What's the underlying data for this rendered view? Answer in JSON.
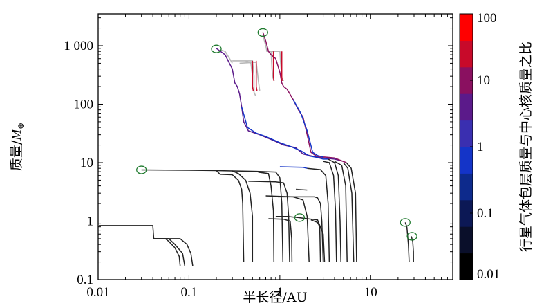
{
  "chart_data": {
    "type": "line",
    "xlabel": "半长径/AU",
    "ylabel": "质量/M⊕",
    "ylabel_text": "质量/",
    "ylabel_symbol": "M",
    "ylabel_sub": "⊕",
    "xscale": "log",
    "yscale": "log",
    "xlim": [
      0.01,
      80
    ],
    "ylim": [
      0.1,
      3500
    ],
    "x_tick_labels": [
      "0.01",
      "0.1",
      "1",
      "10"
    ],
    "x_ticks": [
      0.01,
      0.1,
      1,
      10
    ],
    "y_tick_labels": [
      "0.1",
      "1",
      "10",
      "100",
      "1 000"
    ],
    "y_ticks": [
      0.1,
      1,
      10,
      100,
      1000
    ],
    "grid": false,
    "colorbar": {
      "label": "行星气体包层质量与中心核质量之比",
      "scale": "log",
      "range": [
        0.01,
        100
      ],
      "tick_labels": [
        "0.01",
        "0.1",
        "1",
        "10",
        "100"
      ],
      "ticks": [
        0.01,
        0.1,
        1,
        10,
        100
      ],
      "colors": [
        "#000000",
        "#0a0f2a",
        "#0c1855",
        "#0d2a8c",
        "#1434c8",
        "#3a2fb0",
        "#5b1a8a",
        "#8a1060",
        "#c80a2a",
        "#ff0000"
      ]
    },
    "series": [
      {
        "color": "#222222",
        "points": [
          [
            0.0102,
            0.84
          ],
          [
            0.02,
            0.84
          ],
          [
            0.04,
            0.84
          ],
          [
            0.041,
            0.5
          ],
          [
            0.055,
            0.5
          ],
          [
            0.06,
            0.45
          ],
          [
            0.07,
            0.35
          ],
          [
            0.078,
            0.25
          ],
          [
            0.08,
            0.17
          ]
        ]
      },
      {
        "color": "#222222",
        "points": [
          [
            0.041,
            0.5
          ],
          [
            0.06,
            0.5
          ],
          [
            0.07,
            0.4
          ],
          [
            0.085,
            0.28
          ],
          [
            0.09,
            0.17
          ]
        ]
      },
      {
        "color": "#222222",
        "points": [
          [
            0.055,
            0.5
          ],
          [
            0.08,
            0.5
          ],
          [
            0.095,
            0.4
          ],
          [
            0.105,
            0.28
          ],
          [
            0.11,
            0.17
          ]
        ]
      },
      {
        "color": "#222222",
        "points": [
          [
            0.03,
            7.5
          ],
          [
            0.1,
            7.4
          ],
          [
            0.2,
            7.3
          ],
          [
            0.22,
            6.3
          ],
          [
            0.3,
            6.2
          ],
          [
            0.35,
            5
          ],
          [
            0.38,
            3.5
          ],
          [
            0.39,
            2
          ],
          [
            0.4,
            0.2
          ]
        ]
      },
      {
        "color": "#222222",
        "points": [
          [
            0.2,
            7.3
          ],
          [
            0.3,
            7.2
          ],
          [
            0.35,
            6.5
          ],
          [
            0.42,
            5
          ],
          [
            0.47,
            3
          ],
          [
            0.5,
            1.2
          ],
          [
            0.5,
            0.2
          ]
        ]
      },
      {
        "color": "#222222",
        "points": [
          [
            0.3,
            7.2
          ],
          [
            0.55,
            7.1
          ],
          [
            0.6,
            6.8
          ],
          [
            0.75,
            6.5
          ],
          [
            0.8,
            4
          ],
          [
            0.85,
            1.5
          ],
          [
            0.86,
            0.2
          ]
        ]
      },
      {
        "color": "#222222",
        "points": [
          [
            0.55,
            7.1
          ],
          [
            0.9,
            6.9
          ],
          [
            1.0,
            5.5
          ],
          [
            1.05,
            2
          ],
          [
            1.08,
            0.2
          ]
        ]
      },
      {
        "color": "#222222",
        "points": [
          [
            0.45,
            4.8
          ],
          [
            0.9,
            4.7
          ],
          [
            1.1,
            4.5
          ],
          [
            1.2,
            3
          ],
          [
            1.25,
            1.2
          ],
          [
            1.28,
            0.2
          ]
        ]
      },
      {
        "color": "#222222",
        "points": [
          [
            0.7,
            2.7
          ],
          [
            1.4,
            2.6
          ],
          [
            1.8,
            2.3
          ],
          [
            2.0,
            1.2
          ],
          [
            2.1,
            0.2
          ]
        ]
      },
      {
        "color": "#222222",
        "points": [
          [
            0.95,
            2.6
          ],
          [
            2.4,
            2.6
          ],
          [
            2.6,
            2.5
          ],
          [
            2.8,
            2
          ],
          [
            2.9,
            1
          ],
          [
            3.0,
            0.2
          ]
        ]
      },
      {
        "color": "#222222",
        "points": [
          [
            0.9,
            1.2
          ],
          [
            1.2,
            1.2
          ],
          [
            1.6,
            1.15
          ],
          [
            2.0,
            1.1
          ],
          [
            2.6,
            1.05
          ],
          [
            3.0,
            0.6
          ],
          [
            3.1,
            0.2
          ]
        ]
      },
      {
        "color": "#222222",
        "points": [
          [
            0.75,
            1.1
          ],
          [
            1.1,
            1.08
          ],
          [
            1.3,
            1.0
          ],
          [
            1.35,
            0.5
          ],
          [
            1.36,
            0.2
          ]
        ]
      },
      {
        "color": "#222222",
        "points": [
          [
            2.2,
            1.05
          ],
          [
            2.6,
            0.95
          ],
          [
            2.75,
            0.8
          ],
          [
            2.8,
            0.2
          ]
        ]
      },
      {
        "color": "#444444",
        "points": [
          [
            1.5,
            3.5
          ],
          [
            2.0,
            3.4
          ]
        ]
      },
      {
        "color": "#1434c8",
        "points": [
          [
            1.0,
            8.5
          ],
          [
            1.8,
            8.3
          ],
          [
            2.0,
            8.0
          ]
        ]
      },
      {
        "color": "#222222",
        "points": [
          [
            2.0,
            8.0
          ],
          [
            2.8,
            7.6
          ],
          [
            3.2,
            6
          ],
          [
            3.4,
            2
          ],
          [
            3.5,
            0.2
          ]
        ]
      },
      {
        "color": "#222222",
        "points": [
          [
            3.0,
            10.5
          ],
          [
            3.5,
            10
          ],
          [
            3.9,
            6
          ],
          [
            4.1,
            1.5
          ],
          [
            4.2,
            0.2
          ]
        ]
      },
      {
        "color": "#222222",
        "points": [
          [
            3.4,
            11.5
          ],
          [
            4.0,
            10
          ],
          [
            4.4,
            6
          ],
          [
            4.6,
            1
          ],
          [
            4.7,
            0.2
          ]
        ]
      },
      {
        "color": "#222222",
        "points": [
          [
            4.0,
            10.5
          ],
          [
            4.8,
            9
          ],
          [
            5.3,
            4
          ],
          [
            5.5,
            0.2
          ]
        ]
      },
      {
        "color": "#222222",
        "points": [
          [
            5.0,
            10
          ],
          [
            5.6,
            8
          ],
          [
            6.2,
            3
          ],
          [
            6.5,
            0.2
          ]
        ]
      },
      {
        "color": "#222222",
        "points": [
          [
            5.4,
            10
          ],
          [
            6.1,
            8
          ],
          [
            6.8,
            3
          ],
          [
            7.0,
            0.2
          ]
        ]
      },
      {
        "color": "#5b1a8a",
        "points": [
          [
            0.2,
            900
          ],
          [
            0.25,
            700
          ],
          [
            0.3,
            400
          ],
          [
            0.32,
            230
          ],
          [
            0.34,
            200
          ],
          [
            0.36,
            150
          ],
          [
            0.38,
            90
          ],
          [
            0.4,
            50
          ],
          [
            0.45,
            35
          ],
          [
            0.6,
            30
          ],
          [
            0.8,
            25
          ],
          [
            1.1,
            20
          ],
          [
            1.5,
            18
          ],
          [
            1.8,
            14
          ],
          [
            2.5,
            12.5
          ],
          [
            3.0,
            12
          ],
          [
            4.0,
            11.5
          ],
          [
            5.0,
            10.5
          ]
        ]
      },
      {
        "color": "#8a1060",
        "points": [
          [
            0.65,
            1700
          ],
          [
            0.7,
            1200
          ],
          [
            0.75,
            800
          ],
          [
            0.8,
            700
          ],
          [
            0.9,
            600
          ],
          [
            1.0,
            350
          ],
          [
            1.05,
            230
          ],
          [
            1.1,
            200
          ],
          [
            1.2,
            180
          ],
          [
            1.4,
            120
          ],
          [
            1.6,
            80
          ],
          [
            1.8,
            60
          ],
          [
            2.0,
            30
          ],
          [
            2.2,
            15
          ],
          [
            2.5,
            13
          ],
          [
            3.0,
            12.5
          ],
          [
            4.0,
            12
          ],
          [
            5.4,
            10
          ]
        ]
      },
      {
        "color": "#c80a2a",
        "points": [
          [
            0.5,
            550
          ],
          [
            0.5,
            200
          ],
          [
            0.51,
            170
          ]
        ]
      },
      {
        "color": "#c80a2a",
        "points": [
          [
            0.55,
            550
          ],
          [
            0.55,
            200
          ],
          [
            0.56,
            170
          ]
        ]
      },
      {
        "color": "#c80a2a",
        "points": [
          [
            0.85,
            800
          ],
          [
            0.85,
            300
          ],
          [
            0.86,
            250
          ]
        ]
      },
      {
        "color": "#c80a2a",
        "points": [
          [
            1.05,
            800
          ],
          [
            1.05,
            300
          ],
          [
            1.06,
            250
          ]
        ]
      },
      {
        "color": "#1434c8",
        "points": [
          [
            0.38,
            90
          ],
          [
            0.44,
            40
          ],
          [
            0.55,
            32
          ],
          [
            0.7,
            28
          ],
          [
            1.0,
            22
          ],
          [
            1.3,
            19
          ],
          [
            1.7,
            16
          ],
          [
            2.1,
            13
          ],
          [
            2.6,
            12.2
          ],
          [
            3.0,
            11.5
          ],
          [
            3.4,
            11.5
          ]
        ]
      },
      {
        "color": "#1434c8",
        "points": [
          [
            1.4,
            120
          ],
          [
            1.7,
            70
          ],
          [
            2.0,
            35
          ],
          [
            2.3,
            15
          ],
          [
            2.6,
            13.2
          ],
          [
            3.0,
            12.5
          ]
        ]
      },
      {
        "color": "#222222",
        "points": [
          [
            24,
            0.95
          ],
          [
            25,
            0.8
          ],
          [
            26,
            0.4
          ],
          [
            26.5,
            0.2
          ]
        ]
      },
      {
        "color": "#222222",
        "points": [
          [
            28,
            0.55
          ],
          [
            29,
            0.45
          ],
          [
            29.5,
            0.3
          ],
          [
            29.6,
            0.2
          ]
        ]
      }
    ],
    "gray_series": [
      [
        [
          0.3,
          550
        ],
        [
          0.45,
          550
        ],
        [
          0.5,
          550
        ],
        [
          0.52,
          300
        ],
        [
          0.52,
          160
        ],
        [
          0.54,
          140
        ]
      ],
      [
        [
          0.36,
          500
        ],
        [
          0.55,
          520
        ],
        [
          0.58,
          250
        ],
        [
          0.6,
          170
        ]
      ],
      [
        [
          0.42,
          550
        ],
        [
          0.48,
          500
        ],
        [
          0.5,
          300
        ],
        [
          0.5,
          180
        ]
      ],
      [
        [
          0.65,
          1500
        ],
        [
          0.7,
          1000
        ],
        [
          0.72,
          800
        ],
        [
          0.8,
          800
        ],
        [
          0.82,
          400
        ],
        [
          0.84,
          280
        ],
        [
          0.87,
          250
        ]
      ],
      [
        [
          0.72,
          800
        ],
        [
          1.0,
          800
        ],
        [
          1.02,
          500
        ],
        [
          1.05,
          280
        ],
        [
          1.1,
          250
        ]
      ],
      [
        [
          0.22,
          850
        ],
        [
          0.25,
          800
        ],
        [
          0.28,
          600
        ],
        [
          0.3,
          500
        ]
      ]
    ],
    "markers": [
      [
        0.03,
        7.5
      ],
      [
        0.2,
        880
      ],
      [
        0.65,
        1680
      ],
      [
        1.65,
        1.15
      ],
      [
        24,
        0.95
      ],
      [
        28.5,
        0.55
      ]
    ]
  }
}
